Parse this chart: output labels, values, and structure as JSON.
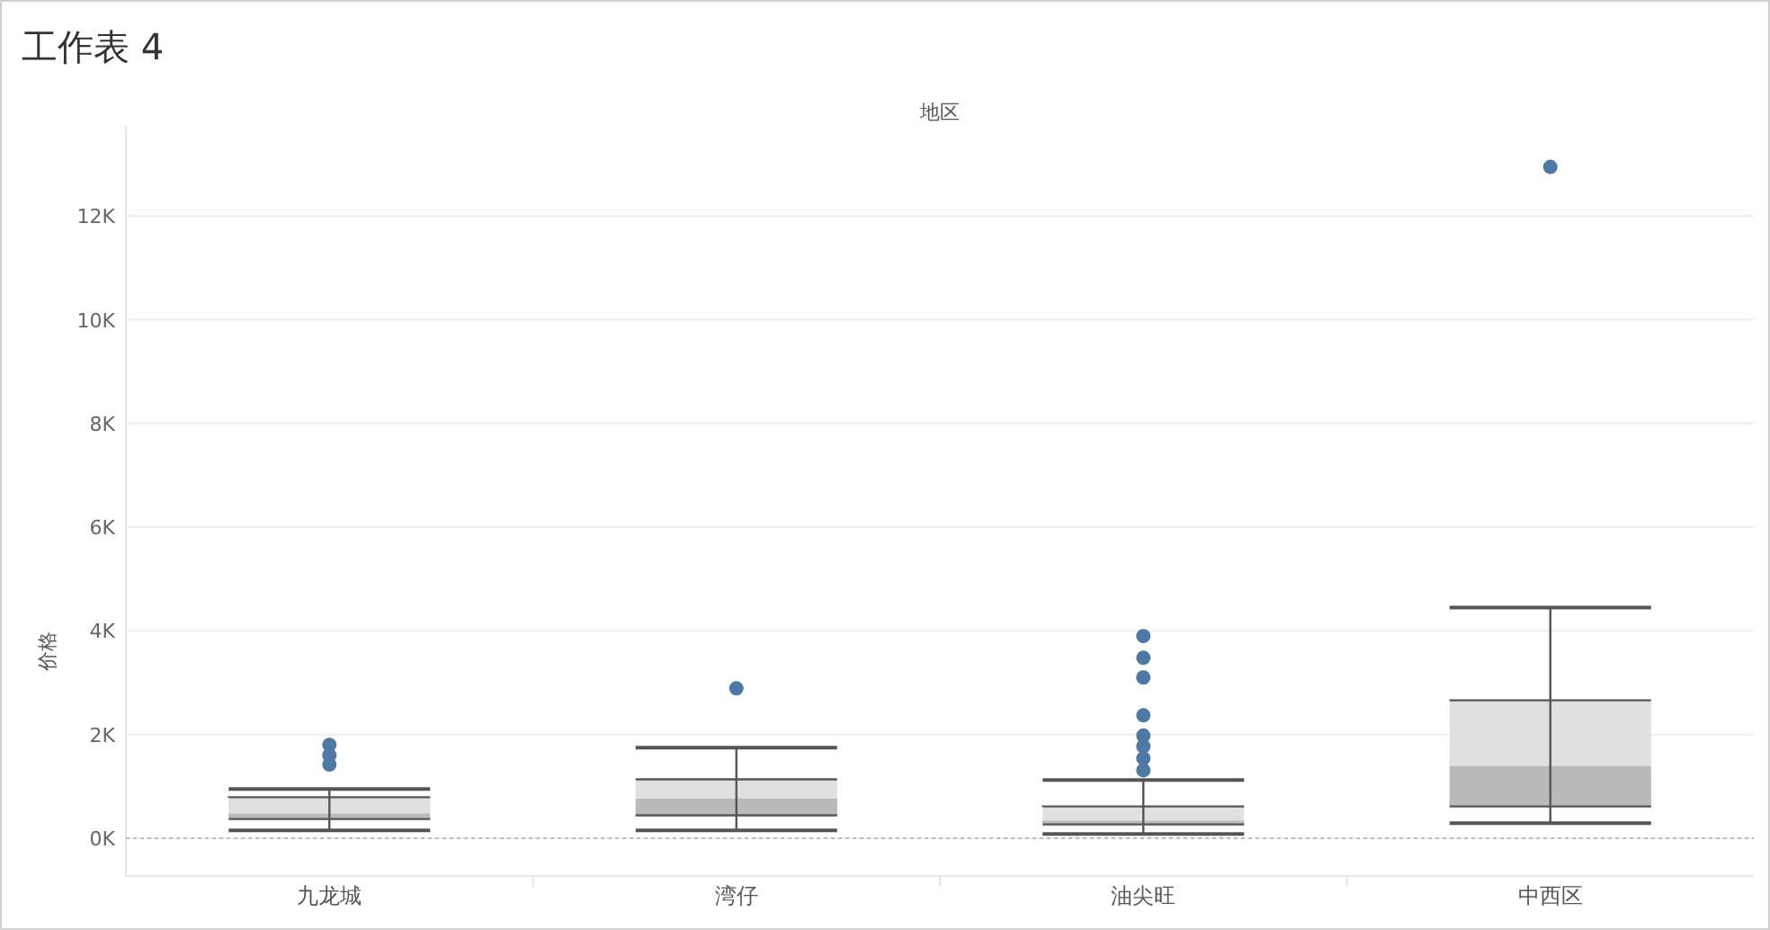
{
  "chart_data": {
    "type": "box",
    "title": "工作表 4",
    "xlabel": "地区",
    "ylabel": "价格",
    "categories": [
      "九龙城",
      "湾仔",
      "油尖旺",
      "中西区"
    ],
    "series": [
      {
        "color": "#e0e0e0",
        "boxes": [
          {
            "low": 150,
            "q1": 370,
            "median": 475,
            "q3": 790,
            "high": 950
          },
          {
            "low": 150,
            "q1": 440,
            "median": 763,
            "q3": 1134,
            "high": 1745
          },
          {
            "low": 80,
            "q1": 266,
            "median": 336,
            "q3": 613,
            "high": 1120
          },
          {
            "low": 290,
            "q1": 613,
            "median": 1390,
            "q3": 2660,
            "high": 4450
          }
        ]
      },
      {
        "type": "scatter",
        "color": "#4e79a7",
        "marker": "circle",
        "x": [
          "九龙城",
          "九龙城",
          "九龙城",
          "湾仔",
          "油尖旺",
          "油尖旺",
          "油尖旺",
          "油尖旺",
          "油尖旺",
          "油尖旺",
          "油尖旺",
          "油尖旺",
          "中西区"
        ],
        "values": [
          1800,
          1600,
          1420,
          2890,
          3900,
          3480,
          3100,
          2370,
          1980,
          1770,
          1540,
          1310,
          12950
        ]
      }
    ],
    "ylim": [
      -730,
      13740
    ],
    "yticks": [
      {
        "value": 0,
        "label": "0K"
      },
      {
        "value": 2000,
        "label": "2K"
      },
      {
        "value": 4000,
        "label": "4K"
      },
      {
        "value": 6000,
        "label": "6K"
      },
      {
        "value": 8000,
        "label": "8K"
      },
      {
        "value": 10000,
        "label": "10K"
      },
      {
        "value": 12000,
        "label": "12K"
      }
    ],
    "ref_lines": [
      {
        "axis": "y",
        "value": 0,
        "line_style": "dotted",
        "color": "#bbbbbb"
      }
    ],
    "grid": "y"
  }
}
